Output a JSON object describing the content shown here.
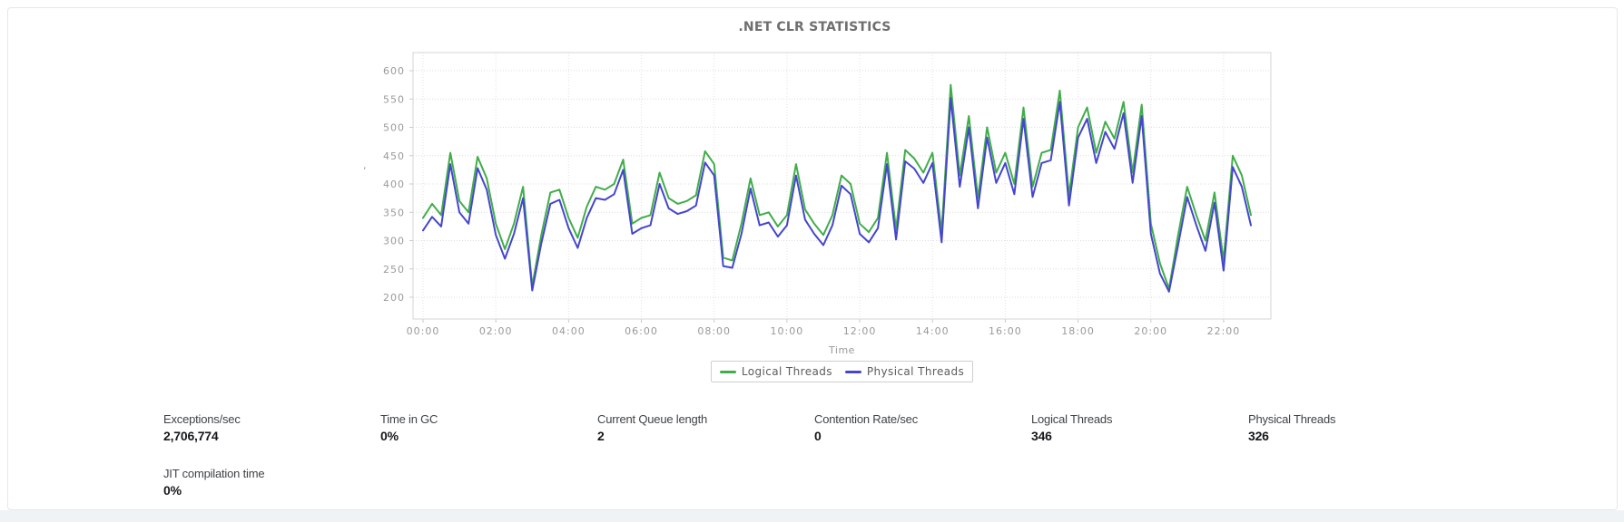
{
  "panel": {
    "title": ".NET CLR STATISTICS"
  },
  "chart_data": {
    "type": "line",
    "title": ".NET CLR STATISTICS",
    "xlabel": "Time",
    "ylabel": ",",
    "grid": true,
    "legend_position": "bottom",
    "x_start": "00:00",
    "x_step_minutes": 15,
    "x_ticks": [
      "00:00",
      "02:00",
      "04:00",
      "06:00",
      "08:00",
      "10:00",
      "12:00",
      "14:00",
      "16:00",
      "18:00",
      "20:00",
      "22:00"
    ],
    "y_ticks": [
      600,
      550,
      500,
      450,
      400,
      350,
      300,
      250,
      200
    ],
    "ylim": [
      200,
      600
    ],
    "series": [
      {
        "name": "Logical Threads",
        "color": "#41ad49",
        "values": [
          340,
          365,
          345,
          455,
          370,
          350,
          448,
          410,
          330,
          285,
          330,
          395,
          220,
          310,
          385,
          390,
          340,
          305,
          360,
          395,
          390,
          400,
          443,
          330,
          340,
          345,
          420,
          375,
          365,
          370,
          380,
          458,
          435,
          270,
          265,
          330,
          410,
          345,
          350,
          325,
          345,
          435,
          355,
          330,
          310,
          345,
          415,
          400,
          330,
          315,
          340,
          455,
          320,
          460,
          445,
          420,
          455,
          315,
          575,
          415,
          520,
          375,
          500,
          420,
          455,
          400,
          535,
          395,
          455,
          460,
          565,
          380,
          500,
          535,
          455,
          510,
          480,
          545,
          420,
          540,
          330,
          260,
          215,
          310,
          395,
          345,
          300,
          385,
          265,
          450,
          415,
          345
        ]
      },
      {
        "name": "Physical Threads",
        "color": "#4545cf",
        "values": [
          318,
          342,
          325,
          435,
          350,
          330,
          428,
          390,
          310,
          268,
          312,
          375,
          212,
          295,
          365,
          372,
          322,
          287,
          340,
          375,
          372,
          382,
          425,
          312,
          322,
          327,
          400,
          357,
          347,
          352,
          362,
          438,
          415,
          255,
          252,
          312,
          392,
          327,
          332,
          307,
          327,
          415,
          337,
          312,
          292,
          327,
          397,
          382,
          312,
          297,
          322,
          435,
          302,
          440,
          427,
          402,
          437,
          297,
          552,
          395,
          500,
          357,
          482,
          402,
          437,
          382,
          515,
          377,
          437,
          442,
          545,
          362,
          482,
          515,
          437,
          492,
          462,
          525,
          402,
          520,
          312,
          242,
          210,
          292,
          377,
          327,
          282,
          367,
          247,
          430,
          395,
          327
        ]
      }
    ]
  },
  "stats": {
    "items": [
      {
        "label": "Exceptions/sec",
        "value": "2,706,774"
      },
      {
        "label": "Time in GC",
        "value": "0%"
      },
      {
        "label": "Current Queue length",
        "value": "2"
      },
      {
        "label": "Contention Rate/sec",
        "value": "0"
      },
      {
        "label": "Logical Threads",
        "value": "346"
      },
      {
        "label": "Physical Threads",
        "value": "326"
      },
      {
        "label": "JIT compilation time",
        "value": "0%"
      }
    ]
  }
}
